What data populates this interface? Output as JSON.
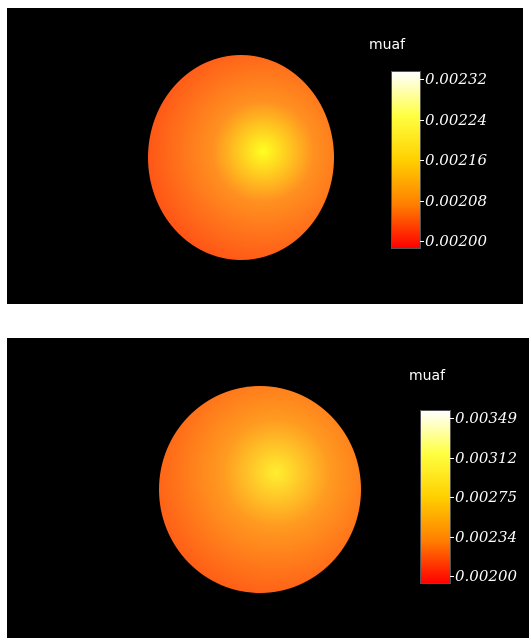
{
  "panels": [
    {
      "scalebar": {
        "title": "muaf",
        "ticks": [
          "0.00232",
          "0.00224",
          "0.00216",
          "0.00208",
          "0.00200"
        ],
        "colormap": [
          "#ffffff",
          "#ffff40",
          "#ffd000",
          "#ff8000",
          "#ff0000"
        ]
      },
      "sphere": {
        "hotspot_color": "#ffff20",
        "mid_color": "#ff9020",
        "edge_color": "#ff3010"
      }
    },
    {
      "scalebar": {
        "title": "muaf",
        "ticks": [
          "0.00349",
          "0.00312",
          "0.00275",
          "0.00234",
          "0.00200"
        ],
        "colormap": [
          "#ffffff",
          "#ffff40",
          "#ffd000",
          "#ff8000",
          "#ff0000"
        ]
      },
      "sphere": {
        "hotspot_color": "#ffee30",
        "mid_color": "#ff9a20",
        "edge_color": "#ff3a10"
      }
    }
  ]
}
